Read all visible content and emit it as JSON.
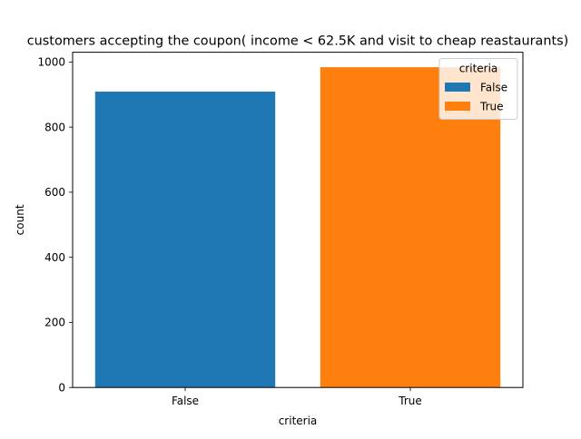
{
  "chart_data": {
    "type": "bar",
    "title": "customers accepting the coupon( income < 62.5K and visit to cheap reastaurants)",
    "xlabel": "criteria",
    "ylabel": "count",
    "categories": [
      "False",
      "True"
    ],
    "values": [
      909,
      984
    ],
    "colors": [
      "#1f77b4",
      "#ff7f0e"
    ],
    "ylim": [
      0,
      1030
    ],
    "yticks": [
      0,
      200,
      400,
      600,
      800,
      1000
    ],
    "grid": false,
    "legend": {
      "title": "criteria",
      "placement": "top-right",
      "entries": [
        "False",
        "True"
      ]
    }
  }
}
